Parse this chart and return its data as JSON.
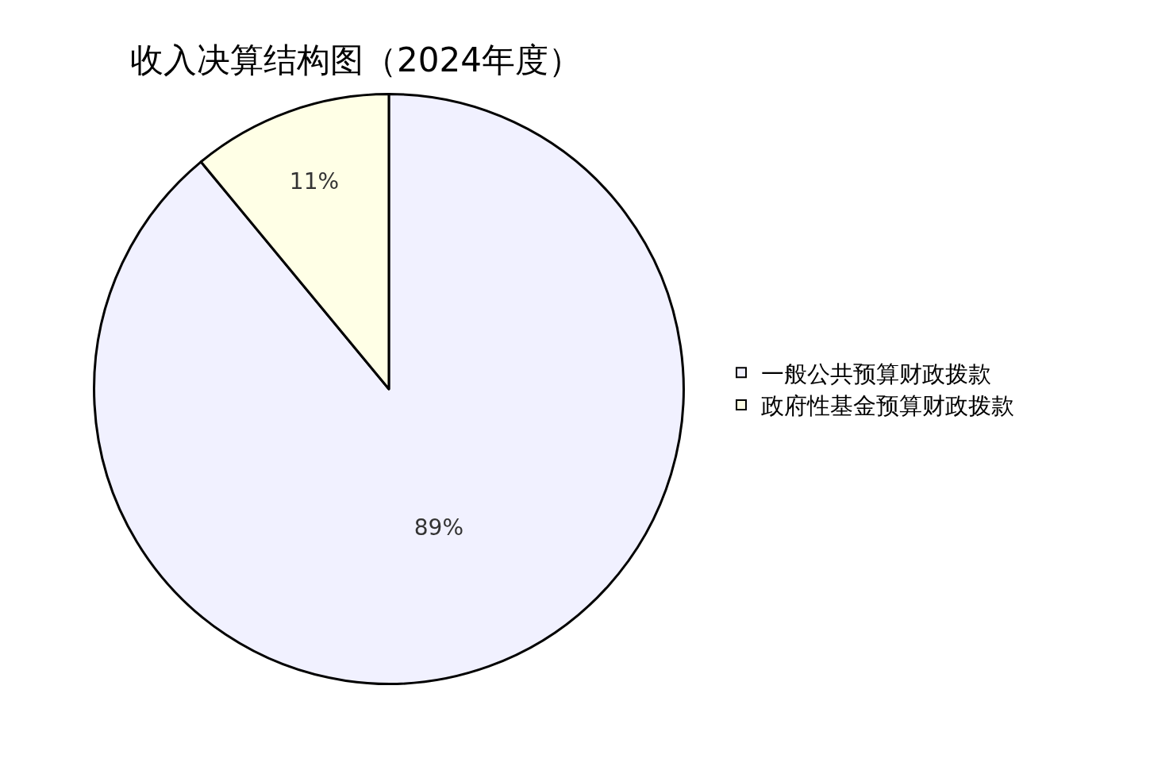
{
  "chart_data": {
    "type": "pie",
    "title": "收入决算结构图（2024年度）",
    "categories": [
      "一般公共预算财政拨款",
      "政府性基金预算财政拨款"
    ],
    "values": [
      89,
      11
    ],
    "value_labels": [
      "89%",
      "11%"
    ],
    "colors": [
      "#f1f1ff",
      "#ffffe6"
    ],
    "legend": "right"
  }
}
